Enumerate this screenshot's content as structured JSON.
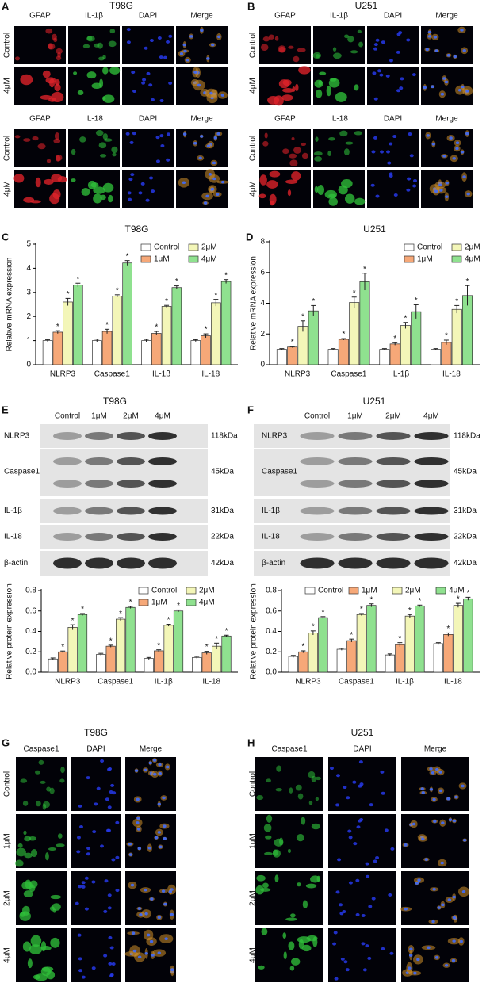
{
  "if_panels": [
    {
      "label": "A",
      "title": "T98G",
      "blocks": [
        {
          "columns": [
            "GFAP",
            "IL-1β",
            "DAPI",
            "Merge"
          ],
          "rows": [
            "Control",
            "4μM"
          ]
        },
        {
          "columns": [
            "GFAP",
            "IL-18",
            "DAPI",
            "Merge"
          ],
          "rows": [
            "Control",
            "4μM"
          ]
        }
      ]
    },
    {
      "label": "B",
      "title": "U251",
      "blocks": [
        {
          "columns": [
            "GFAP",
            "IL-1β",
            "DAPI",
            "Merge"
          ],
          "rows": [
            "Control",
            "4μM"
          ]
        },
        {
          "columns": [
            "GFAP",
            "IL-18",
            "DAPI",
            "Merge"
          ],
          "rows": [
            "Control",
            "4μM"
          ]
        }
      ]
    }
  ],
  "blots": [
    {
      "label": "E",
      "title": "T98G",
      "columns": [
        "Control",
        "1μM",
        "2μM",
        "4μM"
      ],
      "proteins": [
        "NLRP3",
        "Caspase1",
        "IL-1β",
        "IL-18",
        "β-actin"
      ],
      "sizes": [
        "118kDa",
        "45kDa",
        "31kDa",
        "22kDa",
        "42kDa"
      ]
    },
    {
      "label": "F",
      "title": "U251",
      "columns": [
        "Control",
        "1μM",
        "2μM",
        "4μM"
      ],
      "proteins": [
        "NLRP3",
        "Caspase1",
        "IL-1β",
        "IL-18",
        "β-actin"
      ],
      "sizes": [
        "118kDa",
        "45kDa",
        "31kDa",
        "22kDa",
        "42kDa"
      ]
    }
  ],
  "caspase_if": [
    {
      "label": "G",
      "title": "T98G",
      "columns": [
        "Caspase1",
        "DAPI",
        "Merge"
      ],
      "rows": [
        "Control",
        "1μM",
        "2μM",
        "4μM"
      ]
    },
    {
      "label": "H",
      "title": "U251",
      "columns": [
        "Caspase1",
        "DAPI",
        "Merge"
      ],
      "rows": [
        "Control",
        "1μM",
        "2μM",
        "4μM"
      ]
    }
  ],
  "chart_data": [
    {
      "type": "bar",
      "panel_label": "C",
      "title": "T98G",
      "y_label": "Relative mRNA expression",
      "categories": [
        "NLRP3",
        "Caspase1",
        "IL-1β",
        "IL-18"
      ],
      "series": [
        {
          "name": "Control",
          "color": "#ffffff",
          "values": [
            1,
            1,
            1,
            1
          ],
          "errors": [
            0.04,
            0.06,
            0.05,
            0.04
          ]
        },
        {
          "name": "1μM",
          "color": "#f6a878",
          "values": [
            1.35,
            1.38,
            1.3,
            1.2
          ],
          "errors": [
            0.06,
            0.09,
            0.08,
            0.08
          ],
          "marker": "*"
        },
        {
          "name": "2μM",
          "color": "#f3f6b8",
          "values": [
            2.6,
            2.85,
            2.42,
            2.57
          ],
          "errors": [
            0.15,
            0.05,
            0.04,
            0.14
          ],
          "marker": "*"
        },
        {
          "name": "4μM",
          "color": "#8fe18f",
          "values": [
            3.3,
            4.22,
            3.2,
            3.45
          ],
          "errors": [
            0.08,
            0.1,
            0.07,
            0.08
          ],
          "marker": "*"
        }
      ],
      "ylim": [
        0,
        5
      ],
      "yticks": [
        0,
        1,
        2,
        3,
        4,
        5
      ],
      "legend": "top-right",
      "legend_columns": 2
    },
    {
      "type": "bar",
      "panel_label": "D",
      "title": "U251",
      "y_label": "Relative mRNA expression",
      "categories": [
        "NLRP3",
        "Caspase1",
        "IL-1β",
        "IL-18"
      ],
      "series": [
        {
          "name": "Control",
          "color": "#ffffff",
          "values": [
            1,
            1,
            1,
            1
          ],
          "errors": [
            0.05,
            0.05,
            0.05,
            0.05
          ]
        },
        {
          "name": "1μM",
          "color": "#f6a878",
          "values": [
            1.15,
            1.65,
            1.35,
            1.45
          ],
          "errors": [
            0.04,
            0.05,
            0.08,
            0.15
          ],
          "marker": "*"
        },
        {
          "name": "2μM",
          "color": "#f3f6b8",
          "values": [
            2.5,
            4.05,
            2.55,
            3.6
          ],
          "errors": [
            0.35,
            0.35,
            0.2,
            0.25
          ],
          "marker": "*"
        },
        {
          "name": "4μM",
          "color": "#8fe18f",
          "values": [
            3.5,
            5.4,
            3.45,
            4.5
          ],
          "errors": [
            0.35,
            0.55,
            0.45,
            0.65
          ],
          "marker": "*"
        }
      ],
      "ylim": [
        0,
        8
      ],
      "yticks": [
        0,
        2,
        4,
        6,
        8
      ],
      "legend": "top-right",
      "legend_columns": 2
    },
    {
      "type": "bar",
      "panel_label": "",
      "y_label": "Relative protein expression",
      "categories": [
        "NLRP3",
        "Caspase1",
        "IL-1β",
        "IL-18"
      ],
      "series": [
        {
          "name": "Control",
          "color": "#ffffff",
          "values": [
            0.13,
            0.175,
            0.135,
            0.145
          ],
          "errors": [
            0.01,
            0.01,
            0.01,
            0.01
          ]
        },
        {
          "name": "1μM",
          "color": "#f6a878",
          "values": [
            0.2,
            0.255,
            0.21,
            0.19
          ],
          "errors": [
            0.008,
            0.01,
            0.01,
            0.015
          ],
          "marker": "*"
        },
        {
          "name": "2μM",
          "color": "#f3f6b8",
          "values": [
            0.44,
            0.52,
            0.46,
            0.255
          ],
          "errors": [
            0.025,
            0.015,
            0.01,
            0.03
          ],
          "marker": "*"
        },
        {
          "name": "4μM",
          "color": "#8fe18f",
          "values": [
            0.565,
            0.635,
            0.6,
            0.355
          ],
          "errors": [
            0.01,
            0.01,
            0.01,
            0.008
          ],
          "marker": "*"
        }
      ],
      "ylim": [
        0,
        0.8
      ],
      "yticks": [
        {
          "value": 0,
          "label": "0.0"
        },
        0.2,
        0.4,
        0.6,
        0.8
      ],
      "legend": "top-right",
      "legend_columns": 2
    },
    {
      "type": "bar",
      "panel_label": "",
      "y_label": "Relative protein expression",
      "categories": [
        "NLRP3",
        "Caspase1",
        "IL-1β",
        "IL-18"
      ],
      "series": [
        {
          "name": "Control",
          "color": "#ffffff",
          "values": [
            0.155,
            0.225,
            0.17,
            0.28
          ],
          "errors": [
            0.01,
            0.01,
            0.01,
            0.01
          ]
        },
        {
          "name": "1μM",
          "color": "#f6a878",
          "values": [
            0.2,
            0.31,
            0.27,
            0.37
          ],
          "errors": [
            0.01,
            0.015,
            0.02,
            0.015
          ],
          "marker": "*"
        },
        {
          "name": "2μM",
          "color": "#f3f6b8",
          "values": [
            0.385,
            0.565,
            0.55,
            0.655
          ],
          "errors": [
            0.02,
            0.01,
            0.015,
            0.02
          ],
          "marker": "*"
        },
        {
          "name": "4μM",
          "color": "#8fe18f",
          "values": [
            0.535,
            0.655,
            0.65,
            0.72
          ],
          "errors": [
            0.01,
            0.015,
            0.008,
            0.015
          ],
          "marker": "*"
        }
      ],
      "ylim": [
        0,
        0.8
      ],
      "yticks": [
        {
          "value": 0,
          "label": "0.0"
        },
        0.2,
        0.4,
        0.6,
        0.8
      ],
      "legend": "top",
      "legend_columns": 4
    }
  ]
}
